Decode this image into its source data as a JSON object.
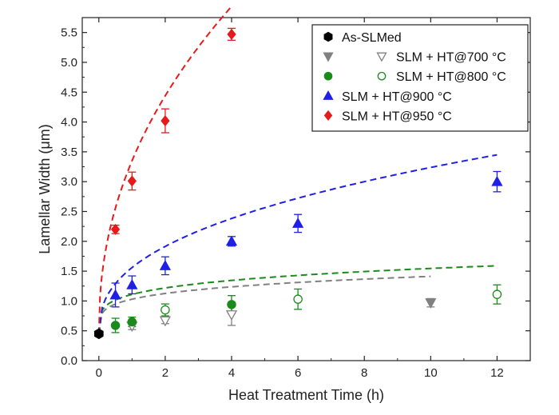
{
  "chart_data": {
    "type": "scatter",
    "xlabel": "Heat Treatment Time (h)",
    "ylabel": "Lamellar Width (μm)",
    "xlim": [
      -0.5,
      13
    ],
    "ylim": [
      0,
      5.75
    ],
    "xticks": [
      0,
      2,
      4,
      6,
      8,
      10,
      12
    ],
    "yticks": [
      0.0,
      0.5,
      1.0,
      1.5,
      2.0,
      2.5,
      3.0,
      3.5,
      4.0,
      4.5,
      5.0,
      5.5
    ],
    "ytick_labels": [
      "0.0",
      "0.5",
      "1.0",
      "1.5",
      "2.0",
      "2.5",
      "3.0",
      "3.5",
      "4.0",
      "4.5",
      "5.0",
      "5.5"
    ],
    "grid": false,
    "legend_position": "top-right",
    "series": [
      {
        "name": "As-SLMed",
        "color": "#000000",
        "marker": "hexagon",
        "points": [
          {
            "x": 0,
            "y": 0.45,
            "err": 0.03,
            "filled": true
          }
        ]
      },
      {
        "name": "SLM + HT@700 °C",
        "color": "#808080",
        "marker": "triangle-down",
        "points": [
          {
            "x": 1,
            "y": 0.58,
            "err": 0.06,
            "filled": false
          },
          {
            "x": 2,
            "y": 0.67,
            "err": 0.05,
            "filled": false
          },
          {
            "x": 4,
            "y": 0.77,
            "err": 0.18,
            "filled": false
          },
          {
            "x": 10,
            "y": 0.97,
            "err": 0.07,
            "filled": true
          }
        ],
        "fit": {
          "a": 0.58,
          "b": 0.22
        }
      },
      {
        "name": "SLM + HT@800 °C",
        "color": "#1a8a1a",
        "marker": "circle",
        "points": [
          {
            "x": 0.5,
            "y": 0.59,
            "err": 0.12,
            "filled": true
          },
          {
            "x": 1,
            "y": 0.65,
            "err": 0.08,
            "filled": true
          },
          {
            "x": 2,
            "y": 0.85,
            "err": 0.1,
            "filled": false
          },
          {
            "x": 4,
            "y": 0.94,
            "err": 0.15,
            "filled": true
          },
          {
            "x": 6,
            "y": 1.03,
            "err": 0.17,
            "filled": false
          },
          {
            "x": 12,
            "y": 1.11,
            "err": 0.16,
            "filled": false
          }
        ],
        "fit": {
          "a": 0.66,
          "b": 0.22
        }
      },
      {
        "name": "SLM + HT@900 °C",
        "color": "#1f1fe6",
        "marker": "triangle-up",
        "points": [
          {
            "x": 0.5,
            "y": 1.1,
            "err": 0.2,
            "filled": true
          },
          {
            "x": 1,
            "y": 1.27,
            "err": 0.15,
            "filled": true
          },
          {
            "x": 2,
            "y": 1.59,
            "err": 0.15,
            "filled": true
          },
          {
            "x": 4,
            "y": 2.0,
            "err": 0.08,
            "filled": true
          },
          {
            "x": 6,
            "y": 2.3,
            "err": 0.15,
            "filled": true
          },
          {
            "x": 12,
            "y": 3.0,
            "err": 0.17,
            "filled": true
          }
        ],
        "fit": {
          "a": 1.11,
          "b": 0.4
        }
      },
      {
        "name": "SLM + HT@950 °C",
        "color": "#e61a1a",
        "marker": "diamond",
        "points": [
          {
            "x": 0.5,
            "y": 2.2,
            "err": 0.07,
            "filled": true
          },
          {
            "x": 1,
            "y": 3.01,
            "err": 0.15,
            "filled": true
          },
          {
            "x": 2,
            "y": 4.02,
            "err": 0.2,
            "filled": true
          },
          {
            "x": 4,
            "y": 5.47,
            "err": 0.1,
            "filled": true
          }
        ],
        "fit": {
          "a": 2.9,
          "b": 0.46
        }
      }
    ],
    "fit_curves": {
      "x0": 0,
      "y0": 0.45,
      "style": "dashed"
    },
    "legend": {
      "entries": [
        {
          "label": "As-SLMed",
          "color": "#000000",
          "markers": [
            {
              "shape": "hexagon",
              "filled": true
            }
          ]
        },
        {
          "label": "SLM + HT@700 °C",
          "color": "#808080",
          "markers": [
            {
              "shape": "triangle-down",
              "filled": true
            },
            {
              "shape": "triangle-down",
              "filled": false
            }
          ]
        },
        {
          "label": "SLM + HT@800 °C",
          "color": "#1a8a1a",
          "markers": [
            {
              "shape": "circle",
              "filled": true
            },
            {
              "shape": "circle",
              "filled": false
            }
          ]
        },
        {
          "label": "SLM + HT@900 °C",
          "color": "#1f1fe6",
          "markers": [
            {
              "shape": "triangle-up",
              "filled": true
            }
          ]
        },
        {
          "label": "SLM + HT@950 °C",
          "color": "#e61a1a",
          "markers": [
            {
              "shape": "diamond",
              "filled": true
            }
          ]
        }
      ]
    }
  }
}
